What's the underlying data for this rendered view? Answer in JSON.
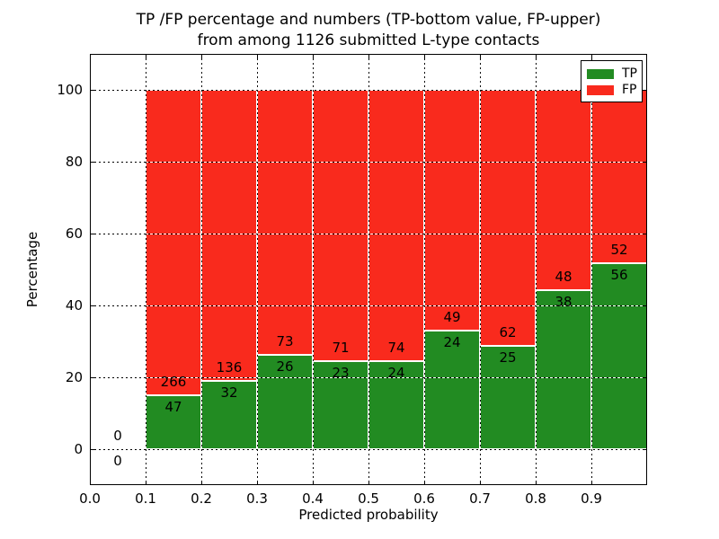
{
  "title": {
    "line1": "TP /FP percentage and numbers (TP-bottom value, FP-upper)",
    "line2": "from among 1126 submitted L-type contacts"
  },
  "axes": {
    "xlabel": "Predicted probability",
    "ylabel": "Percentage",
    "ytick_labels": [
      "0",
      "20",
      "40",
      "60",
      "80",
      "100"
    ],
    "ytick_values": [
      0,
      20,
      40,
      60,
      80,
      100
    ],
    "xtick_labels": [
      "0.0",
      "0.1",
      "0.2",
      "0.3",
      "0.4",
      "0.5",
      "0.6",
      "0.7",
      "0.8",
      "0.9"
    ],
    "xtick_values": [
      0.0,
      0.1,
      0.2,
      0.3,
      0.4,
      0.5,
      0.6,
      0.7,
      0.8,
      0.9
    ]
  },
  "legend": {
    "items": [
      {
        "label": "TP",
        "color": "#228b22"
      },
      {
        "label": "FP",
        "color": "#f92a1d"
      }
    ],
    "position": "upper right"
  },
  "colors": {
    "tp_green": "#228b22",
    "fp_red": "#f92a1d",
    "text": "#000000",
    "background": "#ffffff"
  },
  "chart_data": {
    "type": "bar",
    "stacked": true,
    "normalized_to": 100,
    "title": "TP /FP percentage and numbers (TP-bottom value, FP-upper) from among 1126 submitted L-type contacts",
    "xlabel": "Predicted probability",
    "ylabel": "Percentage",
    "xlim": [
      0.0,
      1.0
    ],
    "ylim": [
      -10,
      110
    ],
    "grid": true,
    "total_contacts": 1126,
    "bin_edges": [
      0.0,
      0.1,
      0.2,
      0.3,
      0.4,
      0.5,
      0.6,
      0.7,
      0.8,
      0.9,
      1.0
    ],
    "series": [
      {
        "name": "TP",
        "position": "bottom",
        "counts": [
          0,
          47,
          32,
          26,
          23,
          24,
          24,
          25,
          38,
          56
        ]
      },
      {
        "name": "FP",
        "position": "top",
        "counts": [
          0,
          266,
          136,
          73,
          71,
          74,
          49,
          62,
          48,
          52
        ]
      }
    ],
    "tp_percentages": [
      0,
      15.0,
      19.0,
      26.3,
      24.5,
      24.5,
      32.9,
      28.7,
      44.2,
      51.9
    ]
  }
}
